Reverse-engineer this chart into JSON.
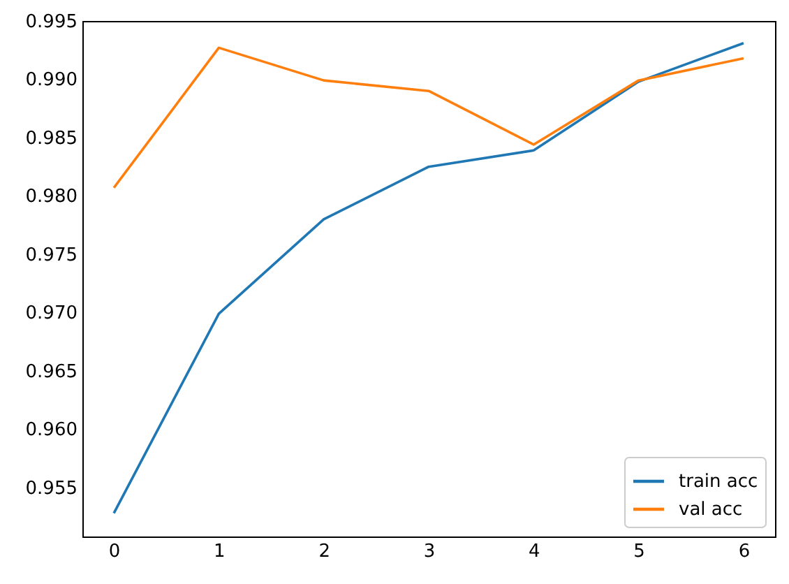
{
  "chart_data": {
    "type": "line",
    "x": [
      0,
      1,
      2,
      3,
      4,
      5,
      6
    ],
    "series": [
      {
        "name": "train acc",
        "color": "#1f77b4",
        "values": [
          0.9528,
          0.9699,
          0.978,
          0.9825,
          0.9839,
          0.9898,
          0.9931
        ]
      },
      {
        "name": "val acc",
        "color": "#ff7f0e",
        "values": [
          0.9807,
          0.9927,
          0.9899,
          0.989,
          0.9844,
          0.9899,
          0.9918
        ]
      }
    ],
    "xlim": [
      -0.3,
      6.3
    ],
    "ylim": [
      0.9508,
      0.995
    ],
    "xticks": [
      0,
      1,
      2,
      3,
      4,
      5,
      6
    ],
    "yticks": [
      0.955,
      {
        "value": 0.96,
        "label": "0.960"
      },
      0.965,
      {
        "value": 0.97,
        "label": "0.970"
      },
      0.975,
      {
        "value": 0.98,
        "label": "0.980"
      },
      0.985,
      {
        "value": 0.99,
        "label": "0.990"
      },
      0.995
    ],
    "legend": "bottom right",
    "grid": false
  }
}
